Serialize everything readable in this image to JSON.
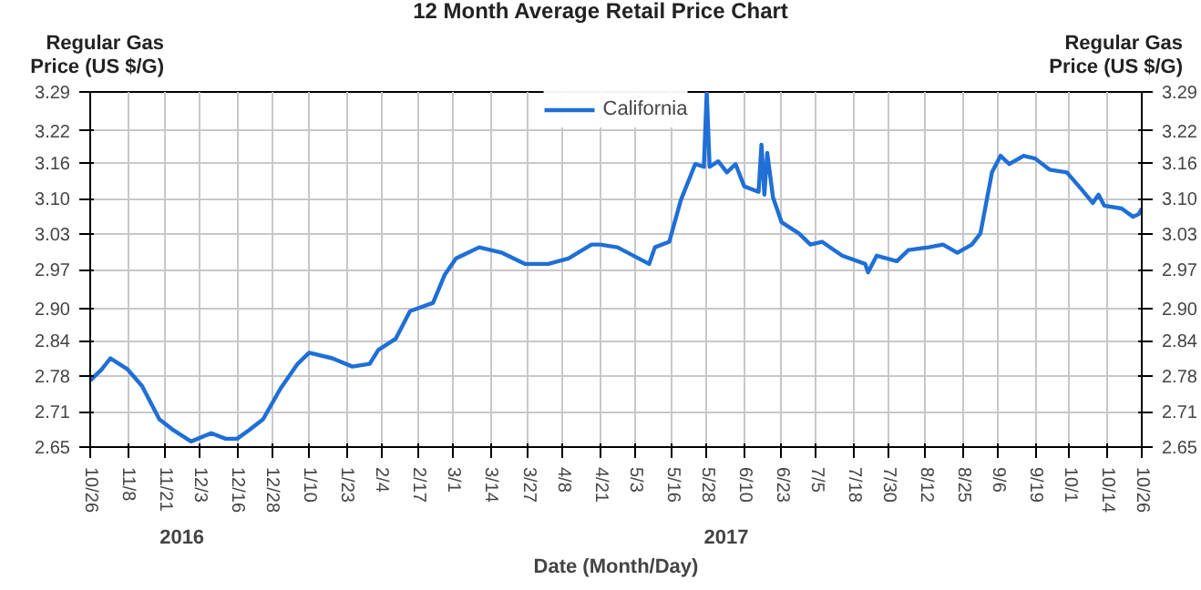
{
  "chart_data": {
    "type": "line",
    "title": "12 Month Average Retail Price Chart",
    "xlabel": "Date (Month/Day)",
    "ylabel": "Regular Gas\nPrice (US $/G)",
    "y2label": "Regular Gas\nPrice (US $/G)",
    "annotations": [
      "2016",
      "2017"
    ],
    "grid": true,
    "legend": "top",
    "line_style": "solid",
    "marker": "none",
    "xlim": [
      "2016-10-26",
      "2017-10-26"
    ],
    "xticks": [
      {
        "value": "2016-10-26",
        "label": "10/26"
      },
      {
        "value": "2016-11-08",
        "label": "11/8"
      },
      {
        "value": "2016-11-21",
        "label": "11/21"
      },
      {
        "value": "2016-12-03",
        "label": "12/3"
      },
      {
        "value": "2016-12-16",
        "label": "12/16"
      },
      {
        "value": "2016-12-28",
        "label": "12/28"
      },
      {
        "value": "2017-01-10",
        "label": "1/10"
      },
      {
        "value": "2017-01-23",
        "label": "1/23"
      },
      {
        "value": "2017-02-04",
        "label": "2/4"
      },
      {
        "value": "2017-02-17",
        "label": "2/17"
      },
      {
        "value": "2017-03-01",
        "label": "3/1"
      },
      {
        "value": "2017-03-14",
        "label": "3/14"
      },
      {
        "value": "2017-03-27",
        "label": "3/27"
      },
      {
        "value": "2017-04-08",
        "label": "4/8"
      },
      {
        "value": "2017-04-21",
        "label": "4/21"
      },
      {
        "value": "2017-05-03",
        "label": "5/3"
      },
      {
        "value": "2017-05-16",
        "label": "5/16"
      },
      {
        "value": "2017-05-28",
        "label": "5/28"
      },
      {
        "value": "2017-06-10",
        "label": "6/10"
      },
      {
        "value": "2017-06-23",
        "label": "6/23"
      },
      {
        "value": "2017-07-05",
        "label": "7/5"
      },
      {
        "value": "2017-07-18",
        "label": "7/18"
      },
      {
        "value": "2017-07-30",
        "label": "7/30"
      },
      {
        "value": "2017-08-12",
        "label": "8/12"
      },
      {
        "value": "2017-08-25",
        "label": "8/25"
      },
      {
        "value": "2017-09-06",
        "label": "9/6"
      },
      {
        "value": "2017-09-19",
        "label": "9/19"
      },
      {
        "value": "2017-10-01",
        "label": "10/1"
      },
      {
        "value": "2017-10-14",
        "label": "10/14"
      },
      {
        "value": "2017-10-26",
        "label": "10/26"
      }
    ],
    "ylim": [
      2.65,
      3.29
    ],
    "yticks": [
      2.65,
      {
        "value": 2.714,
        "label": "2.71"
      },
      {
        "value": 2.778,
        "label": "2.78"
      },
      {
        "value": 2.842,
        "label": "2.84"
      },
      {
        "value": 2.9,
        "label": "2.90"
      },
      2.97,
      {
        "value": 3.034,
        "label": "3.03"
      },
      {
        "value": 3.098,
        "label": "3.10"
      },
      {
        "value": 3.162,
        "label": "3.16"
      },
      {
        "value": 3.22,
        "label": "3.22"
      },
      3.29
    ],
    "y2lim": [
      2.65,
      3.29
    ],
    "y2ticks": [
      2.65,
      {
        "value": 2.714,
        "label": "2.71"
      },
      {
        "value": 2.778,
        "label": "2.78"
      },
      {
        "value": 2.842,
        "label": "2.84"
      },
      {
        "value": 2.9,
        "label": "2.90"
      },
      2.97,
      {
        "value": 3.034,
        "label": "3.03"
      },
      {
        "value": 3.098,
        "label": "3.10"
      },
      {
        "value": 3.162,
        "label": "3.16"
      },
      {
        "value": 3.22,
        "label": "3.22"
      },
      3.29
    ],
    "x": [
      "2016-10-26",
      "2016-10-30",
      "2016-11-02",
      "2016-11-05",
      "2016-11-08",
      "2016-11-13",
      "2016-11-19",
      "2016-11-24",
      "2016-11-30",
      "2016-12-07",
      "2016-12-12",
      "2016-12-16",
      "2016-12-20",
      "2016-12-25",
      "2016-12-31",
      "2017-01-06",
      "2017-01-10",
      "2017-01-18",
      "2017-01-25",
      "2017-01-31",
      "2017-02-03",
      "2017-02-09",
      "2017-02-14",
      "2017-02-22",
      "2017-02-26",
      "2017-03-02",
      "2017-03-10",
      "2017-03-18",
      "2017-03-26",
      "2017-04-03",
      "2017-04-10",
      "2017-04-18",
      "2017-04-21",
      "2017-04-27",
      "2017-05-08",
      "2017-05-10",
      "2017-05-15",
      "2017-05-19",
      "2017-05-24",
      "2017-05-27",
      "2017-05-28",
      "2017-05-29",
      "2017-06-01",
      "2017-06-04",
      "2017-06-07",
      "2017-06-10",
      "2017-06-15",
      "2017-06-16",
      "2017-06-17",
      "2017-06-18",
      "2017-06-20",
      "2017-06-23",
      "2017-06-29",
      "2017-07-03",
      "2017-07-07",
      "2017-07-14",
      "2017-07-22",
      "2017-07-23",
      "2017-07-26",
      "2017-08-02",
      "2017-08-06",
      "2017-08-13",
      "2017-08-18",
      "2017-08-23",
      "2017-08-28",
      "2017-08-31",
      "2017-09-04",
      "2017-09-07",
      "2017-09-10",
      "2017-09-15",
      "2017-09-19",
      "2017-09-24",
      "2017-09-30",
      "2017-10-05",
      "2017-10-09",
      "2017-10-11",
      "2017-10-13",
      "2017-10-19",
      "2017-10-23",
      "2017-10-25",
      "2017-10-26"
    ],
    "series": [
      {
        "name": "California",
        "color": "#1f6fd6",
        "values": [
          2.77,
          2.79,
          2.81,
          2.8,
          2.79,
          2.76,
          2.7,
          2.68,
          2.66,
          2.675,
          2.665,
          2.665,
          2.68,
          2.7,
          2.755,
          2.8,
          2.82,
          2.81,
          2.795,
          2.8,
          2.825,
          2.845,
          2.895,
          2.91,
          2.96,
          2.99,
          3.01,
          3.0,
          2.98,
          2.98,
          2.99,
          3.015,
          3.015,
          3.01,
          2.98,
          3.01,
          3.02,
          3.095,
          3.16,
          3.155,
          3.29,
          3.155,
          3.165,
          3.145,
          3.16,
          3.12,
          3.11,
          3.195,
          3.105,
          3.18,
          3.1,
          3.055,
          3.035,
          3.015,
          3.02,
          2.995,
          2.98,
          2.965,
          2.995,
          2.985,
          3.005,
          3.01,
          3.015,
          3.0,
          3.015,
          3.035,
          3.145,
          3.175,
          3.16,
          3.175,
          3.17,
          3.15,
          3.145,
          3.115,
          3.09,
          3.105,
          3.085,
          3.08,
          3.065,
          3.07,
          3.08
        ]
      }
    ]
  }
}
